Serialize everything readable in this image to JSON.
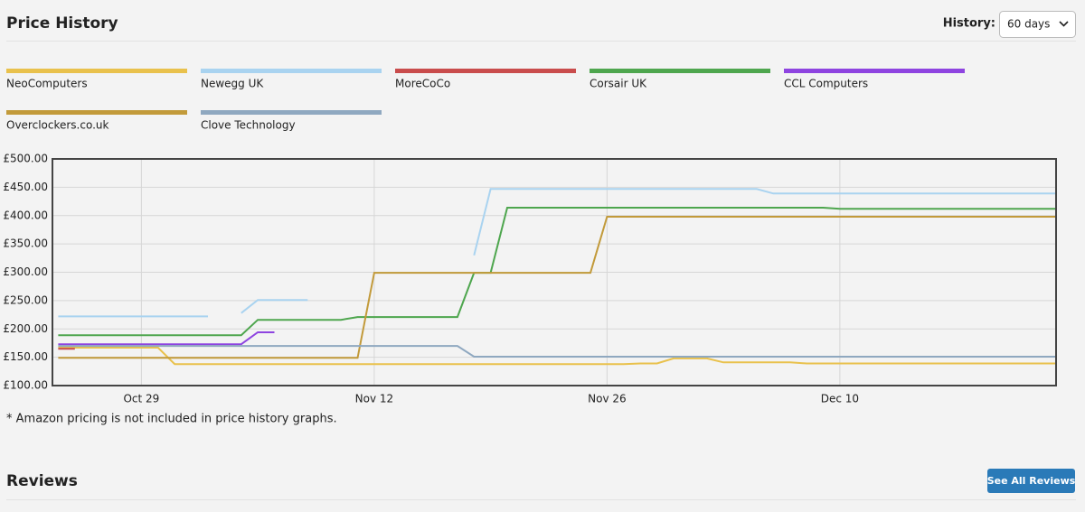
{
  "header": {
    "title": "Price History",
    "history_label": "History:",
    "history_value": "60 days"
  },
  "chart_data": {
    "type": "line",
    "categories": [
      null,
      null,
      null,
      null,
      null,
      "Oct 29",
      null,
      null,
      null,
      null,
      null,
      null,
      null,
      null,
      null,
      null,
      null,
      null,
      null,
      "Nov 12",
      null,
      null,
      null,
      null,
      null,
      null,
      null,
      null,
      null,
      null,
      null,
      null,
      null,
      "Nov 26",
      null,
      null,
      null,
      null,
      null,
      null,
      null,
      null,
      null,
      null,
      null,
      null,
      null,
      "Dec 10",
      null,
      null,
      null,
      null,
      null,
      null,
      null,
      null,
      null,
      null,
      null,
      null,
      null
    ],
    "series": [
      {
        "name": "NeoComputers",
        "color": "#e9c14c",
        "values": [
          167,
          167,
          167,
          167,
          167,
          167,
          167,
          138,
          138,
          138,
          138,
          138,
          138,
          138,
          138,
          138,
          138,
          138,
          138,
          138,
          138,
          138,
          138,
          138,
          138,
          138,
          138,
          138,
          138,
          138,
          138,
          138,
          138,
          138,
          138,
          139,
          139,
          148,
          148,
          148,
          141,
          141,
          141,
          141,
          141,
          139,
          139,
          139,
          139,
          139,
          139,
          139,
          139,
          139,
          139,
          139,
          139,
          139,
          139,
          139,
          139
        ]
      },
      {
        "name": "Newegg UK",
        "color": "#a9d3f0",
        "values": [
          222,
          222,
          222,
          222,
          222,
          222,
          222,
          222,
          222,
          222,
          null,
          228,
          251,
          251,
          251,
          251,
          null,
          null,
          null,
          null,
          null,
          null,
          null,
          null,
          null,
          330,
          447,
          447,
          447,
          447,
          447,
          447,
          447,
          447,
          447,
          447,
          447,
          447,
          447,
          447,
          447,
          447,
          447,
          439,
          439,
          439,
          439,
          439,
          439,
          439,
          439,
          439,
          439,
          439,
          439,
          439,
          439,
          439,
          439,
          439,
          439
        ]
      },
      {
        "name": "MoreCoCo",
        "color": "#c94c4c",
        "values": [
          165,
          165,
          null,
          null,
          null,
          null,
          null,
          null,
          null,
          null,
          null,
          null,
          null,
          null,
          null,
          null,
          null,
          null,
          null,
          null,
          null,
          null,
          null,
          null,
          null,
          null,
          null,
          null,
          null,
          null,
          null,
          null,
          null,
          null,
          null,
          null,
          null,
          null,
          null,
          null,
          null,
          null,
          null,
          null,
          null,
          null,
          null,
          null,
          null,
          null,
          null,
          null,
          null,
          null,
          null,
          null,
          null,
          null,
          null,
          null,
          null
        ]
      },
      {
        "name": "Corsair UK",
        "color": "#4ea64e",
        "values": [
          189,
          189,
          189,
          189,
          189,
          189,
          189,
          189,
          189,
          189,
          189,
          189,
          216,
          216,
          216,
          216,
          216,
          216,
          221,
          221,
          221,
          221,
          221,
          221,
          221,
          299,
          299,
          414,
          414,
          414,
          414,
          414,
          414,
          414,
          414,
          414,
          414,
          414,
          414,
          414,
          414,
          414,
          414,
          414,
          414,
          414,
          414,
          412,
          412,
          412,
          412,
          412,
          412,
          412,
          412,
          412,
          412,
          412,
          412,
          412,
          412
        ]
      },
      {
        "name": "CCL Computers",
        "color": "#8e44e0",
        "values": [
          173,
          173,
          173,
          173,
          173,
          173,
          173,
          173,
          173,
          173,
          173,
          173,
          194,
          194,
          null,
          null,
          null,
          null,
          null,
          null,
          null,
          null,
          null,
          null,
          null,
          null,
          null,
          null,
          null,
          null,
          null,
          null,
          null,
          null,
          null,
          null,
          null,
          null,
          null,
          null,
          null,
          null,
          null,
          null,
          null,
          null,
          null,
          null,
          null,
          null,
          null,
          null,
          null,
          null,
          null,
          null,
          null,
          null,
          null,
          null,
          null
        ]
      },
      {
        "name": "Overclockers.co.uk",
        "color": "#c29a3a",
        "values": [
          149,
          149,
          149,
          149,
          149,
          149,
          149,
          149,
          149,
          149,
          149,
          149,
          149,
          149,
          149,
          149,
          149,
          149,
          149,
          299,
          299,
          299,
          299,
          299,
          299,
          299,
          299,
          299,
          299,
          299,
          299,
          299,
          299,
          398,
          398,
          398,
          398,
          398,
          398,
          398,
          398,
          398,
          398,
          398,
          398,
          398,
          398,
          398,
          398,
          398,
          398,
          398,
          398,
          398,
          398,
          398,
          398,
          398,
          398,
          398,
          398
        ]
      },
      {
        "name": "Clove Technology",
        "color": "#8fa8c0",
        "values": [
          170,
          170,
          170,
          170,
          170,
          170,
          170,
          170,
          170,
          170,
          170,
          170,
          170,
          170,
          170,
          170,
          170,
          170,
          170,
          170,
          170,
          170,
          170,
          170,
          170,
          151,
          151,
          151,
          151,
          151,
          151,
          151,
          151,
          151,
          151,
          151,
          151,
          151,
          151,
          151,
          151,
          151,
          151,
          151,
          151,
          151,
          151,
          151,
          151,
          151,
          151,
          151,
          151,
          151,
          151,
          151,
          151,
          151,
          151,
          151,
          151
        ]
      }
    ],
    "ylim": [
      100,
      500
    ],
    "yticks": [
      {
        "value": 100,
        "label": "£100.00"
      },
      {
        "value": 150,
        "label": "£150.00"
      },
      {
        "value": 200,
        "label": "£200.00"
      },
      {
        "value": 250,
        "label": "£250.00"
      },
      {
        "value": 300,
        "label": "£300.00"
      },
      {
        "value": 350,
        "label": "£350.00"
      },
      {
        "value": 400,
        "label": "£400.00"
      },
      {
        "value": 450,
        "label": "£450.00"
      },
      {
        "value": 500,
        "label": "£500.00"
      }
    ],
    "grid": true
  },
  "footnote": "* Amazon pricing is not included in price history graphs.",
  "reviews": {
    "title": "Reviews",
    "button": "See All Reviews"
  }
}
